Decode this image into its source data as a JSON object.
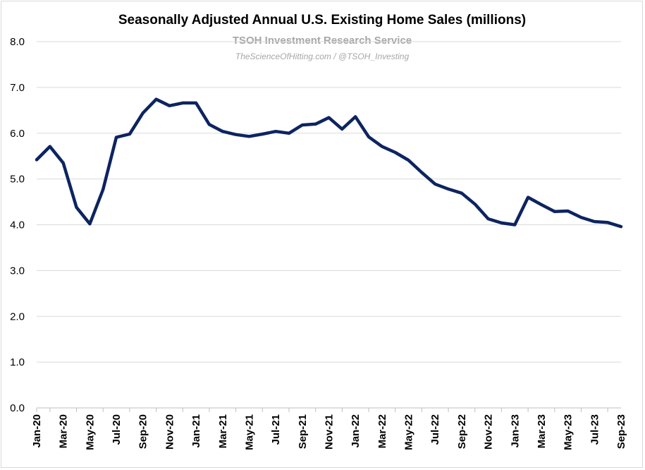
{
  "chart_data": {
    "type": "line",
    "title": "Seasonally Adjusted Annual U.S. Existing Home Sales (millions)",
    "watermark": {
      "line1": "TSOH Investment Research Service",
      "line2": "TheScienceOfHitting.com / @TSOH_Investing"
    },
    "xlabel": "",
    "ylabel": "",
    "ylim": [
      0,
      8
    ],
    "yticks": [
      0,
      1,
      2,
      3,
      4,
      5,
      6,
      7,
      8
    ],
    "ytick_labels": [
      "0.0",
      "1.0",
      "2.0",
      "3.0",
      "4.0",
      "5.0",
      "6.0",
      "7.0",
      "8.0"
    ],
    "grid": "horizontal",
    "legend": "none",
    "line_color": "#0d2461",
    "x": [
      "Jan-20",
      "Feb-20",
      "Mar-20",
      "Apr-20",
      "May-20",
      "Jun-20",
      "Jul-20",
      "Aug-20",
      "Sep-20",
      "Oct-20",
      "Nov-20",
      "Dec-20",
      "Jan-21",
      "Feb-21",
      "Mar-21",
      "Apr-21",
      "May-21",
      "Jun-21",
      "Jul-21",
      "Aug-21",
      "Sep-21",
      "Oct-21",
      "Nov-21",
      "Dec-21",
      "Jan-22",
      "Feb-22",
      "Mar-22",
      "Apr-22",
      "May-22",
      "Jun-22",
      "Jul-22",
      "Aug-22",
      "Sep-22",
      "Oct-22",
      "Nov-22",
      "Dec-22",
      "Jan-23",
      "Feb-23",
      "Mar-23",
      "Apr-23",
      "May-23",
      "Jun-23",
      "Jul-23",
      "Aug-23",
      "Sep-23"
    ],
    "tick_labels_shown": [
      "Jan-20",
      "Mar-20",
      "May-20",
      "Jul-20",
      "Sep-20",
      "Nov-20",
      "Jan-21",
      "Mar-21",
      "May-21",
      "Jul-21",
      "Sep-21",
      "Nov-21",
      "Jan-22",
      "Mar-22",
      "May-22",
      "Jul-22",
      "Sep-22",
      "Nov-22",
      "Jan-23",
      "Mar-23",
      "May-23",
      "Jul-23",
      "Sep-23"
    ],
    "series": [
      {
        "values": [
          5.42,
          5.71,
          5.35,
          4.38,
          4.02,
          4.77,
          5.91,
          5.98,
          6.44,
          6.74,
          6.6,
          6.66,
          6.66,
          6.19,
          6.04,
          5.97,
          5.93,
          5.98,
          6.04,
          6.0,
          6.18,
          6.2,
          6.34,
          6.09,
          6.36,
          5.92,
          5.71,
          5.58,
          5.41,
          5.14,
          4.89,
          4.78,
          4.69,
          4.45,
          4.13,
          4.04,
          4.0,
          4.6,
          4.44,
          4.29,
          4.3,
          4.16,
          4.07,
          4.05,
          3.96
        ]
      }
    ]
  }
}
